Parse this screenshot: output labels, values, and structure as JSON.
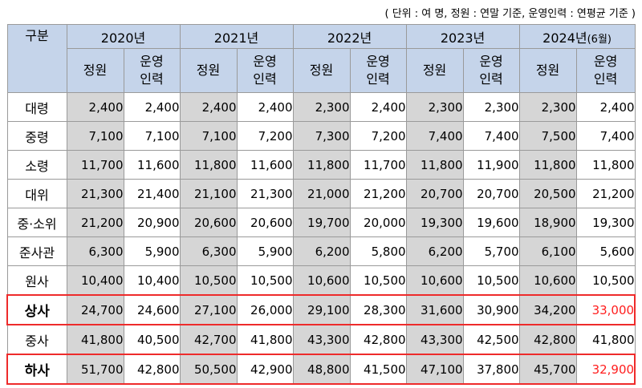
{
  "unit_note": "( 단위 : 여 명, 정원 : 연말 기준, 운영인력 : 연평균 기준 )",
  "header": {
    "corner": "구분",
    "years": [
      {
        "year": "2020년",
        "suffix": ""
      },
      {
        "year": "2021년",
        "suffix": ""
      },
      {
        "year": "2022년",
        "suffix": ""
      },
      {
        "year": "2023년",
        "suffix": ""
      },
      {
        "year": "2024년",
        "suffix": "(6월)"
      }
    ],
    "sub_quota": "정원",
    "sub_actual_line1": "운영",
    "sub_actual_line2": "인력"
  },
  "rows": [
    {
      "label": "대령",
      "values": [
        "2,400",
        "2,400",
        "2,400",
        "2,400",
        "2,300",
        "2,400",
        "2,300",
        "2,300",
        "2,300",
        "2,400"
      ]
    },
    {
      "label": "중령",
      "values": [
        "7,100",
        "7,100",
        "7,100",
        "7,200",
        "7,300",
        "7,200",
        "7,400",
        "7,400",
        "7,500",
        "7,400"
      ]
    },
    {
      "label": "소령",
      "values": [
        "11,700",
        "11,600",
        "11,800",
        "11,600",
        "11,800",
        "11,700",
        "11,800",
        "11,900",
        "11,800",
        "11,800"
      ]
    },
    {
      "label": "대위",
      "values": [
        "21,300",
        "21,400",
        "21,100",
        "21,300",
        "21,000",
        "21,200",
        "20,700",
        "20,700",
        "20,500",
        "21,200"
      ]
    },
    {
      "label": "중·소위",
      "values": [
        "21,200",
        "20,900",
        "20,600",
        "20,600",
        "19,700",
        "20,000",
        "19,300",
        "19,600",
        "18,900",
        "19,300"
      ]
    },
    {
      "label": "준사관",
      "values": [
        "6,300",
        "5,900",
        "6,300",
        "5,900",
        "6,200",
        "5,800",
        "6,200",
        "5,700",
        "6,100",
        "5,600"
      ]
    },
    {
      "label": "원사",
      "values": [
        "10,400",
        "10,400",
        "10,500",
        "10,500",
        "10,600",
        "10,500",
        "10,600",
        "10,500",
        "10,600",
        "10,500"
      ]
    },
    {
      "label": "상사",
      "values": [
        "24,700",
        "24,600",
        "27,100",
        "26,000",
        "29,100",
        "28,300",
        "31,600",
        "30,900",
        "34,200",
        "33,000"
      ],
      "highlight": true,
      "last_red": true
    },
    {
      "label": "중사",
      "values": [
        "41,800",
        "40,500",
        "42,700",
        "41,800",
        "43,300",
        "42,800",
        "43,300",
        "42,500",
        "42,800",
        "41,800"
      ]
    },
    {
      "label": "하사",
      "values": [
        "51,700",
        "42,800",
        "50,500",
        "42,900",
        "48,800",
        "41,500",
        "47,100",
        "37,800",
        "45,700",
        "32,900"
      ],
      "highlight": true,
      "last_red": true
    }
  ],
  "colors": {
    "header_bg": "#c5d4ea",
    "quota_bg": "#d6d6d6",
    "highlight_border": "#ee2b2b",
    "highlight_text": "#ff1e1e"
  }
}
